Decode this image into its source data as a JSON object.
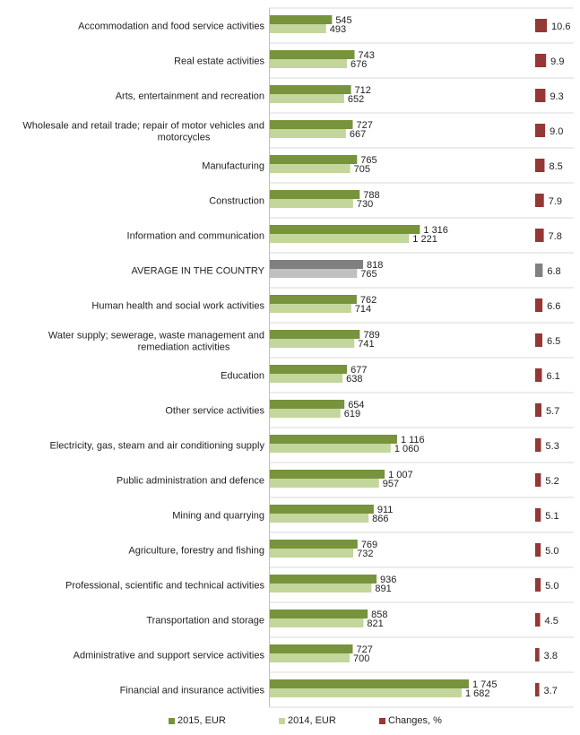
{
  "chart_data": {
    "type": "bar",
    "orientation": "horizontal",
    "categories": [
      "Accommodation and food service activities",
      "Real estate activities",
      "Arts, entertainment and recreation",
      "Wholesale and retail trade; repair of motor vehicles and motorcycles",
      "Manufacturing",
      "Construction",
      "Information and communication",
      "AVERAGE IN THE COUNTRY",
      "Human health and social work activities",
      "Water supply; sewerage, waste management and remediation activities",
      "Education",
      "Other service activities",
      "Electricity, gas, steam and air conditioning supply",
      "Public administration and defence",
      "Mining and quarrying",
      "Agriculture, forestry and fishing",
      "Professional, scientific and technical activities",
      "Transportation and storage",
      "Administrative and support service activities",
      "Financial and insurance activities"
    ],
    "category_lines": [
      [
        "Accommodation and food service activities"
      ],
      [
        "Real estate activities"
      ],
      [
        "Arts, entertainment and recreation"
      ],
      [
        "Wholesale and retail trade; repair of motor vehicles and",
        "motorcycles"
      ],
      [
        "Manufacturing"
      ],
      [
        "Construction"
      ],
      [
        "Information and communication"
      ],
      [
        "AVERAGE IN THE COUNTRY"
      ],
      [
        "Human health and social work activities"
      ],
      [
        "Water supply; sewerage, waste management and",
        "remediation activities"
      ],
      [
        "Education"
      ],
      [
        "Other service activities"
      ],
      [
        "Electricity, gas, steam and air conditioning supply"
      ],
      [
        "Public administration and defence"
      ],
      [
        "Mining and quarrying"
      ],
      [
        "Agriculture, forestry and fishing"
      ],
      [
        "Professional, scientific and technical activities"
      ],
      [
        "Transportation and storage"
      ],
      [
        "Administrative and support service activities"
      ],
      [
        "Financial and insurance activities"
      ]
    ],
    "highlight_index": 7,
    "series": [
      {
        "name": "2015, EUR",
        "color": "#77933c",
        "highlight_color": "#808080",
        "values": [
          545,
          743,
          712,
          727,
          765,
          788,
          1316,
          818,
          762,
          789,
          677,
          654,
          1116,
          1007,
          911,
          769,
          936,
          858,
          727,
          1745
        ],
        "labels": [
          "545",
          "743",
          "712",
          "727",
          "765",
          "788",
          "1 316",
          "818",
          "762",
          "789",
          "677",
          "654",
          "1 116",
          "1 007",
          "911",
          "769",
          "936",
          "858",
          "727",
          "1 745"
        ]
      },
      {
        "name": "2014, EUR",
        "color": "#c3d69b",
        "highlight_color": "#c0c0c0",
        "values": [
          493,
          676,
          652,
          667,
          705,
          730,
          1221,
          765,
          714,
          741,
          638,
          619,
          1060,
          957,
          866,
          732,
          891,
          821,
          700,
          1682
        ],
        "labels": [
          "493",
          "676",
          "652",
          "667",
          "705",
          "730",
          "1 221",
          "765",
          "714",
          "741",
          "638",
          "619",
          "1 060",
          "957",
          "866",
          "732",
          "891",
          "821",
          "700",
          "1 682"
        ]
      },
      {
        "name": "Changes, %",
        "color": "#953735",
        "highlight_color": "#808080",
        "values": [
          10.6,
          9.9,
          9.3,
          9.0,
          8.5,
          7.9,
          7.8,
          6.8,
          6.6,
          6.5,
          6.1,
          5.7,
          5.3,
          5.2,
          5.1,
          5.0,
          5.0,
          4.5,
          3.8,
          3.7
        ],
        "labels": [
          "10.6",
          "9.9",
          "9.3",
          "9.0",
          "8.5",
          "7.9",
          "7.8",
          "6.8",
          "6.6",
          "6.5",
          "6.1",
          "5.7",
          "5.3",
          "5.2",
          "5.1",
          "5.0",
          "5.0",
          "4.5",
          "3.8",
          "3.7"
        ]
      }
    ],
    "legend_position": "bottom",
    "gridlines": "horizontal separators"
  }
}
